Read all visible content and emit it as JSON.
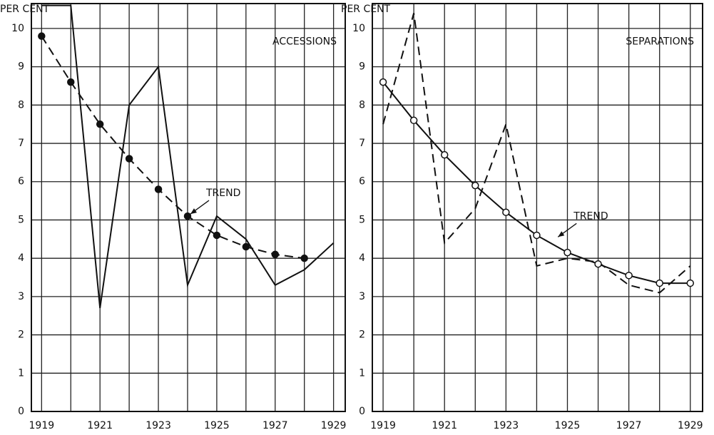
{
  "chart_data": [
    {
      "type": "line",
      "y_label": "PER CENT",
      "panel_label": "ACCESSIONS",
      "trend_label": "TREND",
      "x": [
        1919,
        1920,
        1921,
        1922,
        1923,
        1924,
        1925,
        1926,
        1927,
        1928,
        1929
      ],
      "xlim": [
        1918.65,
        1929.4
      ],
      "xticks": [
        1919,
        1921,
        1923,
        1925,
        1927,
        1929
      ],
      "xminor_ticks": [
        1920,
        1922,
        1924,
        1926,
        1928
      ],
      "ylim": [
        0,
        10.65
      ],
      "yticks": [
        0,
        1,
        2,
        3,
        4,
        5,
        6,
        7,
        8,
        9,
        10
      ],
      "grid": true,
      "series": [
        {
          "color": "#111111",
          "style": "solid",
          "marker": "none",
          "values": [
            10.6,
            10.6,
            2.7,
            8.0,
            9.0,
            3.3,
            5.1,
            4.5,
            3.3,
            3.7,
            4.4
          ]
        },
        {
          "color": "#111111",
          "style": "dashed",
          "marker": "filled",
          "values": [
            9.8,
            8.6,
            7.5,
            6.6,
            5.8,
            5.1,
            4.6,
            4.3,
            4.1,
            4.0,
            null
          ]
        }
      ]
    },
    {
      "type": "line",
      "y_label": "PER CENT",
      "panel_label": "SEPARATIONS",
      "trend_label": "TREND",
      "x": [
        1919,
        1920,
        1921,
        1922,
        1923,
        1924,
        1925,
        1926,
        1927,
        1928,
        1929
      ],
      "xlim": [
        1918.65,
        1929.4
      ],
      "xticks": [
        1919,
        1921,
        1923,
        1925,
        1927,
        1929
      ],
      "xminor_ticks": [
        1920,
        1922,
        1924,
        1926,
        1928
      ],
      "ylim": [
        0,
        10.65
      ],
      "yticks": [
        0,
        1,
        2,
        3,
        4,
        5,
        6,
        7,
        8,
        9,
        10
      ],
      "grid": true,
      "series": [
        {
          "color": "#111111",
          "style": "dashed",
          "marker": "none",
          "values": [
            7.5,
            10.4,
            4.4,
            5.3,
            7.5,
            3.8,
            4.0,
            3.9,
            3.3,
            3.1,
            3.8
          ]
        },
        {
          "color": "#111111",
          "style": "solid",
          "marker": "open",
          "values": [
            8.6,
            7.6,
            6.7,
            5.9,
            5.2,
            4.6,
            4.15,
            3.85,
            3.55,
            3.35,
            3.35
          ]
        }
      ]
    }
  ]
}
